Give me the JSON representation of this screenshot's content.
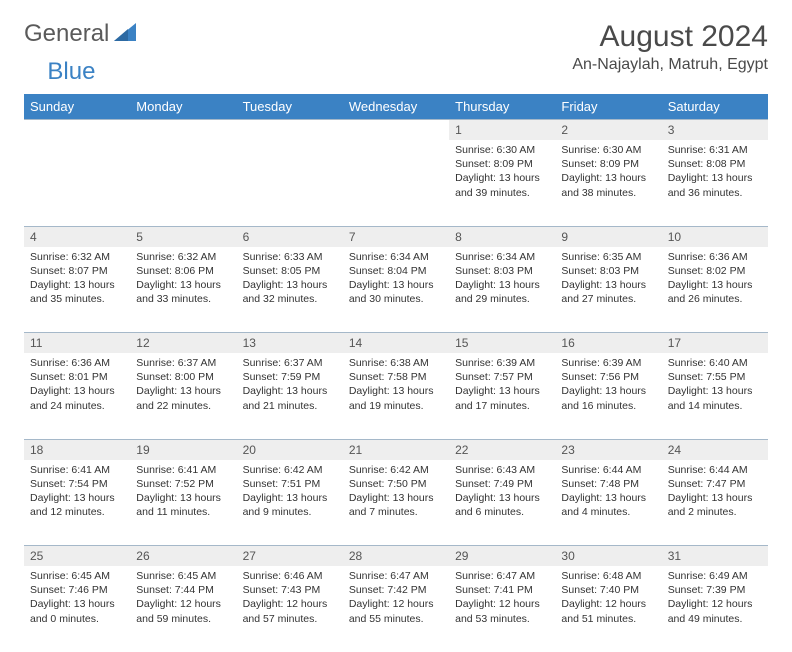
{
  "logo": {
    "text_gray": "General",
    "text_blue": "Blue"
  },
  "title": "August 2024",
  "location": "An-Najaylah, Matruh, Egypt",
  "colors": {
    "header_bg": "#3b82c4",
    "header_fg": "#ffffff",
    "daynum_bg": "#eeeeee",
    "border": "#a5b8c9"
  },
  "weekdays": [
    "Sunday",
    "Monday",
    "Tuesday",
    "Wednesday",
    "Thursday",
    "Friday",
    "Saturday"
  ],
  "weeks": [
    [
      null,
      null,
      null,
      null,
      {
        "n": "1",
        "sunrise": "6:30 AM",
        "sunset": "8:09 PM",
        "dl1": "Daylight: 13 hours",
        "dl2": "and 39 minutes."
      },
      {
        "n": "2",
        "sunrise": "6:30 AM",
        "sunset": "8:09 PM",
        "dl1": "Daylight: 13 hours",
        "dl2": "and 38 minutes."
      },
      {
        "n": "3",
        "sunrise": "6:31 AM",
        "sunset": "8:08 PM",
        "dl1": "Daylight: 13 hours",
        "dl2": "and 36 minutes."
      }
    ],
    [
      {
        "n": "4",
        "sunrise": "6:32 AM",
        "sunset": "8:07 PM",
        "dl1": "Daylight: 13 hours",
        "dl2": "and 35 minutes."
      },
      {
        "n": "5",
        "sunrise": "6:32 AM",
        "sunset": "8:06 PM",
        "dl1": "Daylight: 13 hours",
        "dl2": "and 33 minutes."
      },
      {
        "n": "6",
        "sunrise": "6:33 AM",
        "sunset": "8:05 PM",
        "dl1": "Daylight: 13 hours",
        "dl2": "and 32 minutes."
      },
      {
        "n": "7",
        "sunrise": "6:34 AM",
        "sunset": "8:04 PM",
        "dl1": "Daylight: 13 hours",
        "dl2": "and 30 minutes."
      },
      {
        "n": "8",
        "sunrise": "6:34 AM",
        "sunset": "8:03 PM",
        "dl1": "Daylight: 13 hours",
        "dl2": "and 29 minutes."
      },
      {
        "n": "9",
        "sunrise": "6:35 AM",
        "sunset": "8:03 PM",
        "dl1": "Daylight: 13 hours",
        "dl2": "and 27 minutes."
      },
      {
        "n": "10",
        "sunrise": "6:36 AM",
        "sunset": "8:02 PM",
        "dl1": "Daylight: 13 hours",
        "dl2": "and 26 minutes."
      }
    ],
    [
      {
        "n": "11",
        "sunrise": "6:36 AM",
        "sunset": "8:01 PM",
        "dl1": "Daylight: 13 hours",
        "dl2": "and 24 minutes."
      },
      {
        "n": "12",
        "sunrise": "6:37 AM",
        "sunset": "8:00 PM",
        "dl1": "Daylight: 13 hours",
        "dl2": "and 22 minutes."
      },
      {
        "n": "13",
        "sunrise": "6:37 AM",
        "sunset": "7:59 PM",
        "dl1": "Daylight: 13 hours",
        "dl2": "and 21 minutes."
      },
      {
        "n": "14",
        "sunrise": "6:38 AM",
        "sunset": "7:58 PM",
        "dl1": "Daylight: 13 hours",
        "dl2": "and 19 minutes."
      },
      {
        "n": "15",
        "sunrise": "6:39 AM",
        "sunset": "7:57 PM",
        "dl1": "Daylight: 13 hours",
        "dl2": "and 17 minutes."
      },
      {
        "n": "16",
        "sunrise": "6:39 AM",
        "sunset": "7:56 PM",
        "dl1": "Daylight: 13 hours",
        "dl2": "and 16 minutes."
      },
      {
        "n": "17",
        "sunrise": "6:40 AM",
        "sunset": "7:55 PM",
        "dl1": "Daylight: 13 hours",
        "dl2": "and 14 minutes."
      }
    ],
    [
      {
        "n": "18",
        "sunrise": "6:41 AM",
        "sunset": "7:54 PM",
        "dl1": "Daylight: 13 hours",
        "dl2": "and 12 minutes."
      },
      {
        "n": "19",
        "sunrise": "6:41 AM",
        "sunset": "7:52 PM",
        "dl1": "Daylight: 13 hours",
        "dl2": "and 11 minutes."
      },
      {
        "n": "20",
        "sunrise": "6:42 AM",
        "sunset": "7:51 PM",
        "dl1": "Daylight: 13 hours",
        "dl2": "and 9 minutes."
      },
      {
        "n": "21",
        "sunrise": "6:42 AM",
        "sunset": "7:50 PM",
        "dl1": "Daylight: 13 hours",
        "dl2": "and 7 minutes."
      },
      {
        "n": "22",
        "sunrise": "6:43 AM",
        "sunset": "7:49 PM",
        "dl1": "Daylight: 13 hours",
        "dl2": "and 6 minutes."
      },
      {
        "n": "23",
        "sunrise": "6:44 AM",
        "sunset": "7:48 PM",
        "dl1": "Daylight: 13 hours",
        "dl2": "and 4 minutes."
      },
      {
        "n": "24",
        "sunrise": "6:44 AM",
        "sunset": "7:47 PM",
        "dl1": "Daylight: 13 hours",
        "dl2": "and 2 minutes."
      }
    ],
    [
      {
        "n": "25",
        "sunrise": "6:45 AM",
        "sunset": "7:46 PM",
        "dl1": "Daylight: 13 hours",
        "dl2": "and 0 minutes."
      },
      {
        "n": "26",
        "sunrise": "6:45 AM",
        "sunset": "7:44 PM",
        "dl1": "Daylight: 12 hours",
        "dl2": "and 59 minutes."
      },
      {
        "n": "27",
        "sunrise": "6:46 AM",
        "sunset": "7:43 PM",
        "dl1": "Daylight: 12 hours",
        "dl2": "and 57 minutes."
      },
      {
        "n": "28",
        "sunrise": "6:47 AM",
        "sunset": "7:42 PM",
        "dl1": "Daylight: 12 hours",
        "dl2": "and 55 minutes."
      },
      {
        "n": "29",
        "sunrise": "6:47 AM",
        "sunset": "7:41 PM",
        "dl1": "Daylight: 12 hours",
        "dl2": "and 53 minutes."
      },
      {
        "n": "30",
        "sunrise": "6:48 AM",
        "sunset": "7:40 PM",
        "dl1": "Daylight: 12 hours",
        "dl2": "and 51 minutes."
      },
      {
        "n": "31",
        "sunrise": "6:49 AM",
        "sunset": "7:39 PM",
        "dl1": "Daylight: 12 hours",
        "dl2": "and 49 minutes."
      }
    ]
  ]
}
